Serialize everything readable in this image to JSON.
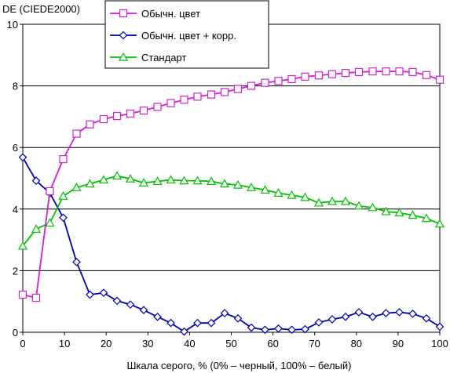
{
  "chart_data": {
    "type": "line",
    "ylabel": "DE (CIEDE2000)",
    "xlabel": "Шкала серого, % (0% – черный, 100% – белый)",
    "xlim": [
      0,
      100
    ],
    "ylim": [
      0,
      10
    ],
    "xticks": [
      0,
      10,
      20,
      30,
      40,
      50,
      60,
      70,
      80,
      90,
      100
    ],
    "yticks": [
      0,
      2,
      4,
      6,
      8,
      10
    ],
    "grid": "horizontal",
    "legend_position": "top-left",
    "x": [
      0,
      3.2,
      6.5,
      9.7,
      12.9,
      16.1,
      19.4,
      22.6,
      25.8,
      29.0,
      32.3,
      35.5,
      38.7,
      41.9,
      45.2,
      48.4,
      51.6,
      54.8,
      58.1,
      61.3,
      64.5,
      67.7,
      71.0,
      74.2,
      77.4,
      80.6,
      83.9,
      87.1,
      90.3,
      93.5,
      96.8,
      100
    ],
    "series": [
      {
        "name": "Обычн. цвет",
        "color": "#d020d0",
        "marker": "square",
        "values": [
          1.22,
          1.12,
          4.58,
          5.62,
          6.45,
          6.75,
          6.92,
          7.02,
          7.1,
          7.2,
          7.32,
          7.44,
          7.55,
          7.65,
          7.72,
          7.8,
          7.9,
          8.0,
          8.1,
          8.16,
          8.22,
          8.3,
          8.34,
          8.38,
          8.42,
          8.45,
          8.47,
          8.47,
          8.47,
          8.45,
          8.35,
          8.2
        ]
      },
      {
        "name": "Обычн. цвет + корр.",
        "color": "#0000b0",
        "marker": "diamond",
        "values": [
          5.68,
          4.92,
          4.52,
          3.72,
          2.28,
          1.22,
          1.28,
          1.02,
          0.9,
          0.72,
          0.5,
          0.3,
          0.02,
          0.3,
          0.3,
          0.62,
          0.45,
          0.15,
          0.08,
          0.12,
          0.08,
          0.1,
          0.32,
          0.42,
          0.5,
          0.65,
          0.5,
          0.62,
          0.65,
          0.6,
          0.45,
          0.18
        ]
      },
      {
        "name": "Стандарт",
        "color": "#00c000",
        "marker": "triangle",
        "values": [
          2.8,
          3.35,
          3.55,
          4.42,
          4.7,
          4.82,
          4.95,
          5.08,
          4.98,
          4.85,
          4.9,
          4.95,
          4.92,
          4.92,
          4.9,
          4.82,
          4.78,
          4.7,
          4.62,
          4.52,
          4.45,
          4.38,
          4.2,
          4.25,
          4.25,
          4.1,
          4.05,
          3.92,
          3.88,
          3.8,
          3.7,
          3.52
        ]
      }
    ]
  }
}
